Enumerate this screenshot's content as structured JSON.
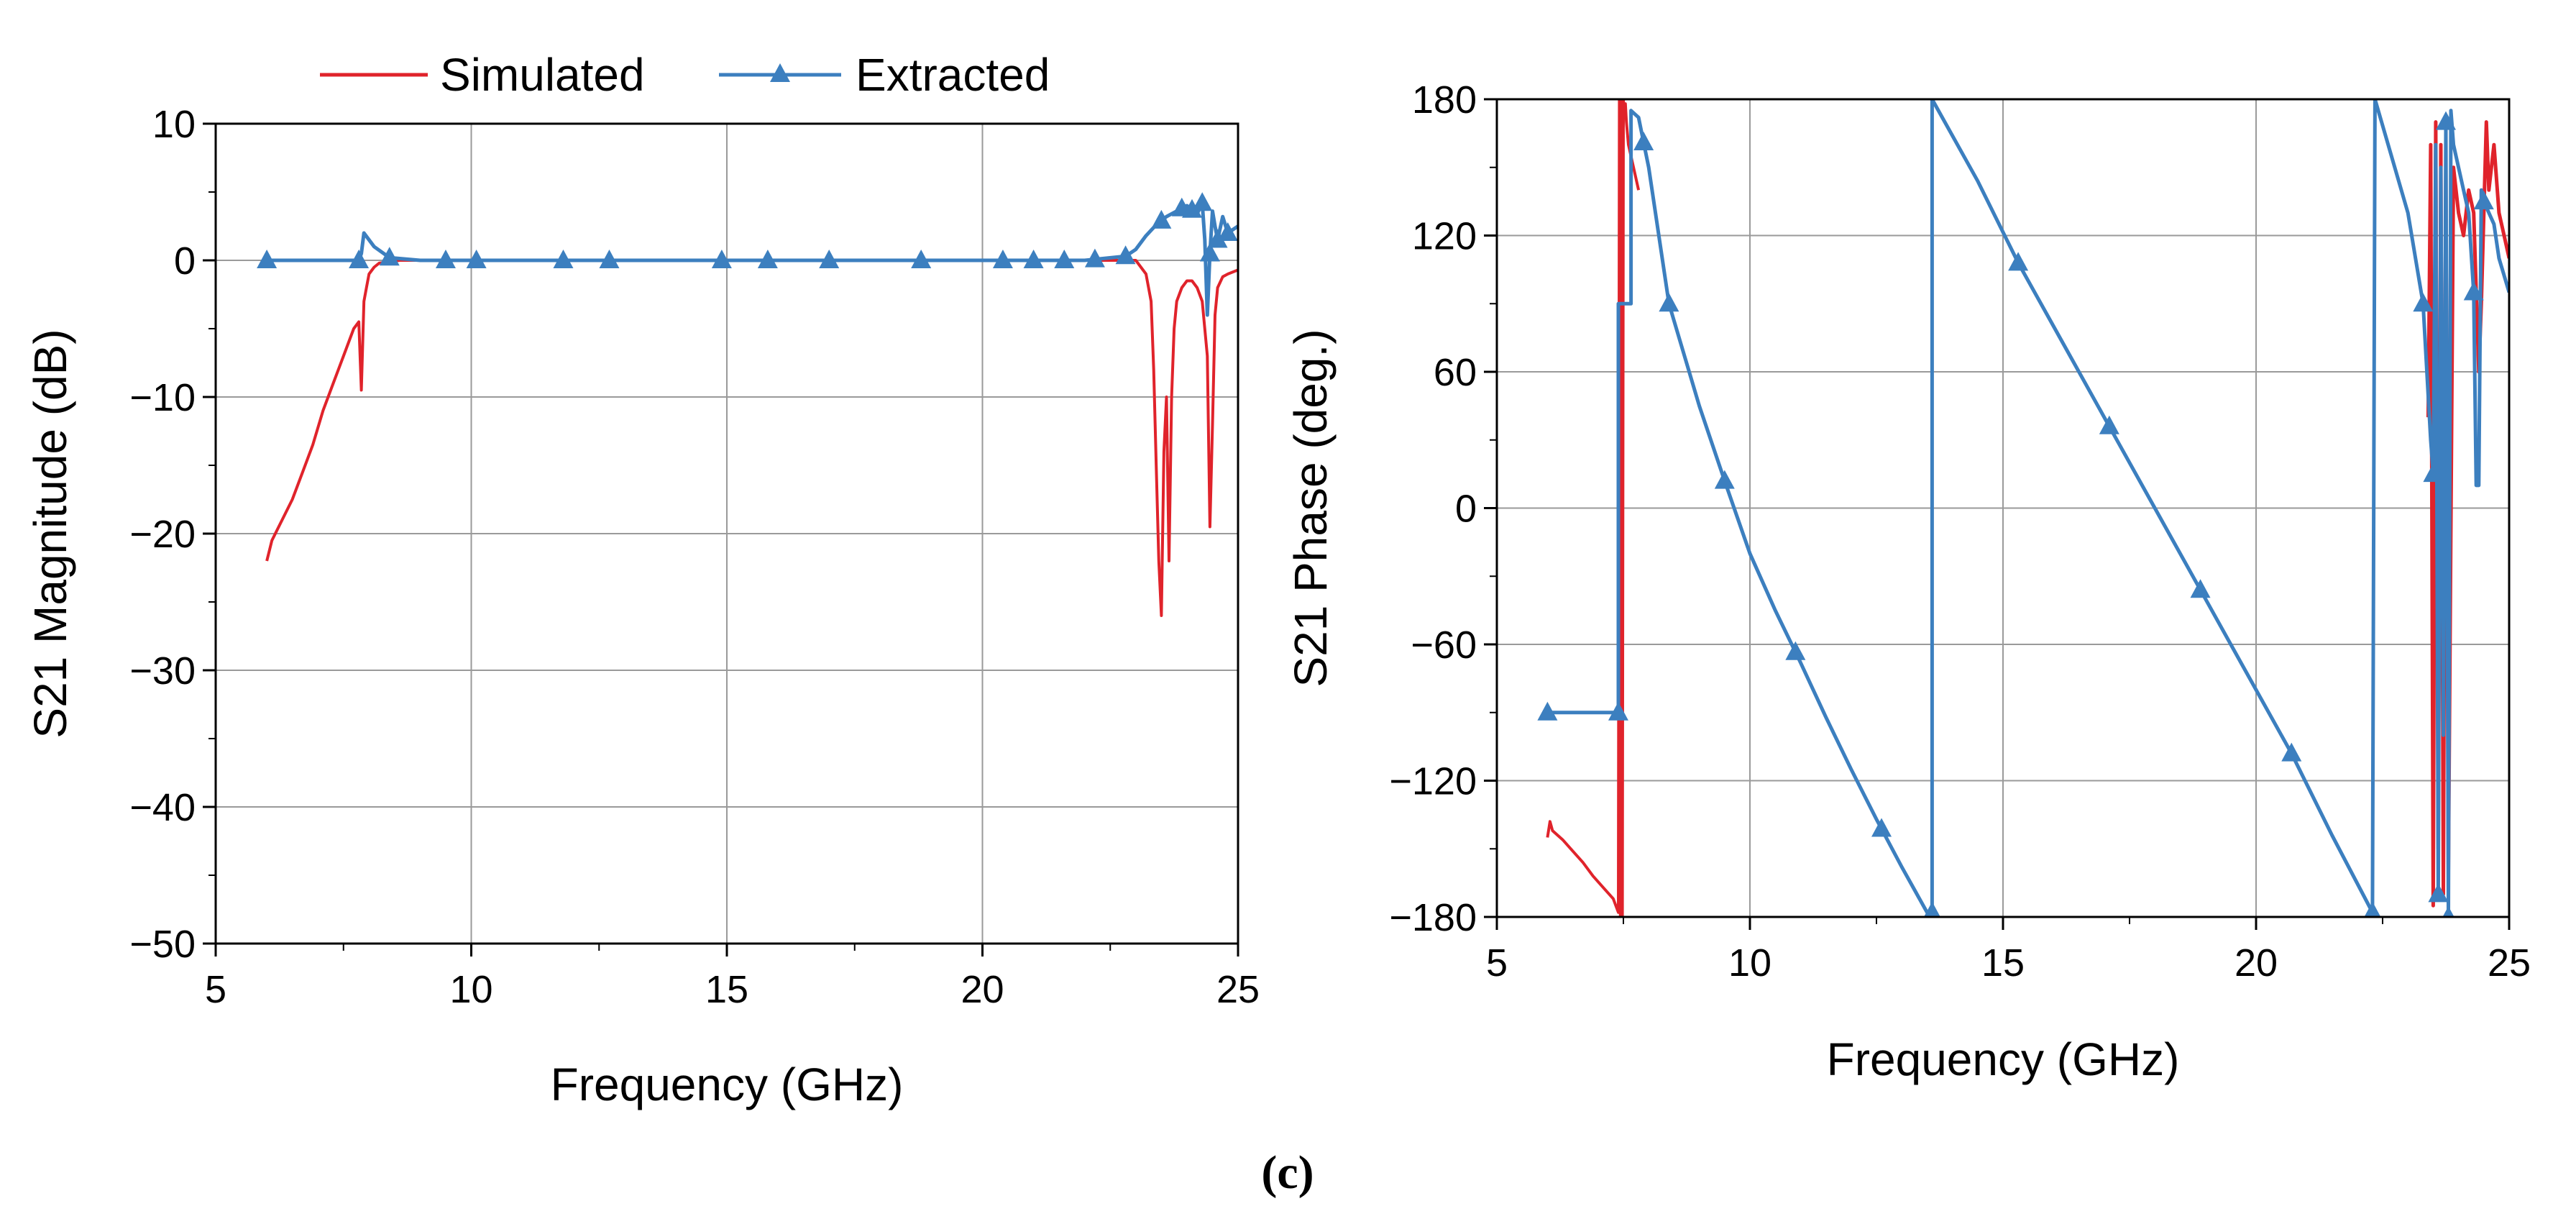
{
  "caption": "(c)",
  "colors": {
    "simulated": "#e0232b",
    "extracted": "#3c7fbf",
    "grid": "#9a9a9a",
    "axis": "#000000"
  },
  "chart_data": [
    {
      "type": "line",
      "title": "",
      "xlabel": "Frequency (GHz)",
      "ylabel": "S21 Magnitude (dB)",
      "xlim": [
        5,
        25
      ],
      "ylim": [
        -50,
        10
      ],
      "xticks": [
        "5",
        "10",
        "15",
        "20",
        "25"
      ],
      "yticks": [
        "10",
        "0",
        "−10",
        "−20",
        "−30",
        "−40",
        "−50"
      ],
      "grid": true,
      "legend": "top-center",
      "series": [
        {
          "name": "Simulated",
          "color": "#e0232b",
          "marker": "none",
          "x": [
            6.0,
            6.1,
            6.3,
            6.5,
            6.7,
            6.9,
            7.1,
            7.3,
            7.5,
            7.7,
            7.8,
            7.85,
            7.9,
            7.95,
            8.0,
            8.1,
            8.2,
            8.4,
            8.6,
            9.0,
            12.0,
            16.0,
            20.0,
            22.5,
            23.0,
            23.2,
            23.3,
            23.35,
            23.4,
            23.45,
            23.5,
            23.55,
            23.6,
            23.65,
            23.7,
            23.75,
            23.8,
            23.9,
            24.0,
            24.1,
            24.2,
            24.3,
            24.4,
            24.45,
            24.5,
            24.55,
            24.6,
            24.7,
            24.8,
            25.0
          ],
          "y": [
            -22,
            -20.5,
            -19,
            -17.5,
            -15.5,
            -13.5,
            -11,
            -9,
            -7,
            -5,
            -4.5,
            -9.5,
            -3,
            -2,
            -1,
            -0.5,
            -0.2,
            -0.1,
            0,
            0,
            0,
            0,
            0,
            0,
            0,
            -1,
            -3,
            -8,
            -15,
            -22,
            -26,
            -14,
            -10,
            -22,
            -10,
            -5,
            -3,
            -2,
            -1.5,
            -1.5,
            -2,
            -3,
            -7,
            -19.5,
            -12,
            -4,
            -2,
            -1.2,
            -1,
            -0.7
          ]
        },
        {
          "name": "Extracted",
          "color": "#3c7fbf",
          "marker": "triangle",
          "x": [
            6.0,
            7.5,
            7.8,
            7.85,
            7.9,
            8.1,
            8.4,
            9.0,
            10.0,
            12.0,
            14.0,
            16.0,
            18.0,
            20.0,
            22.0,
            22.8,
            23.0,
            23.2,
            23.4,
            23.6,
            23.8,
            24.0,
            24.2,
            24.3,
            24.35,
            24.4,
            24.45,
            24.5,
            24.55,
            24.6,
            24.7,
            24.8,
            25.0
          ],
          "y": [
            0,
            0,
            0,
            0.5,
            2,
            1,
            0.2,
            0,
            0,
            0,
            0,
            0,
            0,
            0,
            0,
            0.3,
            0.8,
            1.8,
            2.6,
            3.2,
            3.6,
            4.0,
            3.4,
            4.2,
            1.5,
            -4,
            0.5,
            3.6,
            2.5,
            1.5,
            3.2,
            2.0,
            2.5
          ]
        }
      ],
      "marker_x": [
        6.0,
        7.8,
        8.4,
        9.5,
        10.1,
        11.8,
        12.7,
        14.9,
        15.8,
        17.0,
        18.8,
        20.4,
        21.0,
        21.6,
        22.2,
        22.8,
        23.5,
        23.9,
        24.1,
        24.3,
        24.45,
        24.6,
        24.8
      ]
    },
    {
      "type": "line",
      "title": "",
      "xlabel": "Frequency (GHz)",
      "ylabel": "S21 Phase (deg.)",
      "xlim": [
        5,
        25
      ],
      "ylim": [
        -180,
        180
      ],
      "xticks": [
        "5",
        "10",
        "15",
        "20",
        "25"
      ],
      "yticks": [
        "180",
        "120",
        "60",
        "0",
        "−60",
        "−120",
        "−180"
      ],
      "grid": true,
      "series": [
        {
          "name": "Simulated",
          "color": "#e0232b",
          "marker": "none",
          "x": [
            6.0,
            6.05,
            6.1,
            6.3,
            6.5,
            6.7,
            6.9,
            7.1,
            7.3,
            7.4,
            7.42,
            7.44,
            7.46,
            7.48,
            7.5,
            7.52,
            7.54,
            7.56,
            7.6,
            7.7,
            7.8
          ],
          "y": [
            -145,
            -138,
            -142,
            -146,
            -151,
            -156,
            -162,
            -167,
            -172,
            -178,
            180,
            -180,
            180,
            -180,
            180,
            172,
            178,
            170,
            160,
            150,
            140
          ],
          "extra_x": [
            23.4,
            23.45,
            23.5,
            23.55,
            23.6,
            23.65,
            23.7,
            23.75,
            23.8,
            23.9,
            24.0,
            24.1,
            24.2,
            24.3,
            24.4,
            24.45,
            24.5,
            24.55,
            24.6,
            24.7,
            24.8,
            24.9,
            25.0
          ],
          "extra_y": [
            40,
            160,
            -175,
            170,
            -150,
            160,
            -170,
            150,
            -160,
            150,
            130,
            120,
            140,
            130,
            60,
            90,
            130,
            170,
            140,
            160,
            130,
            120,
            110
          ]
        },
        {
          "name": "Extracted",
          "color": "#3c7fbf",
          "marker": "triangle",
          "x": [
            6.0,
            7.4,
            7.4,
            7.4,
            7.6,
            7.65,
            7.65,
            7.8,
            8.0,
            8.4,
            9.0,
            9.5,
            10.0,
            10.5,
            11.0,
            11.5,
            12.0,
            12.5,
            13.0,
            13.5,
            13.6,
            13.6,
            14.5,
            15.3,
            16.2,
            17.1,
            18.0,
            18.9,
            19.8,
            20.7,
            21.5,
            22.3,
            22.35,
            22.35,
            23.0,
            23.3,
            23.45,
            23.5,
            23.55,
            23.6,
            23.65,
            23.7,
            23.75,
            23.8,
            23.85,
            23.9,
            24.0,
            24.1,
            24.2,
            24.3,
            24.35,
            24.4,
            24.45,
            24.5,
            24.6,
            24.7,
            24.8,
            25.0
          ],
          "y": [
            -90,
            -90,
            90,
            90,
            90,
            90,
            175,
            172,
            150,
            90,
            45,
            12,
            -20,
            -45,
            -68,
            -92,
            -115,
            -137,
            -158,
            -178,
            -178,
            180,
            144,
            108,
            72,
            36,
            0,
            -36,
            -72,
            -108,
            -144,
            -178,
            180,
            180,
            130,
            90,
            30,
            15,
            160,
            -170,
            150,
            -100,
            170,
            -180,
            175,
            160,
            150,
            140,
            130,
            95,
            10,
            10,
            140,
            135,
            130,
            125,
            110,
            95
          ],
          "marker_x": [
            6.0,
            7.4,
            7.9,
            8.4,
            9.5,
            10.9,
            12.6,
            13.6,
            15.3,
            17.1,
            18.9,
            20.7,
            22.3,
            23.3,
            23.5,
            23.6,
            23.75,
            23.8,
            24.3,
            24.5
          ]
        }
      ]
    }
  ]
}
